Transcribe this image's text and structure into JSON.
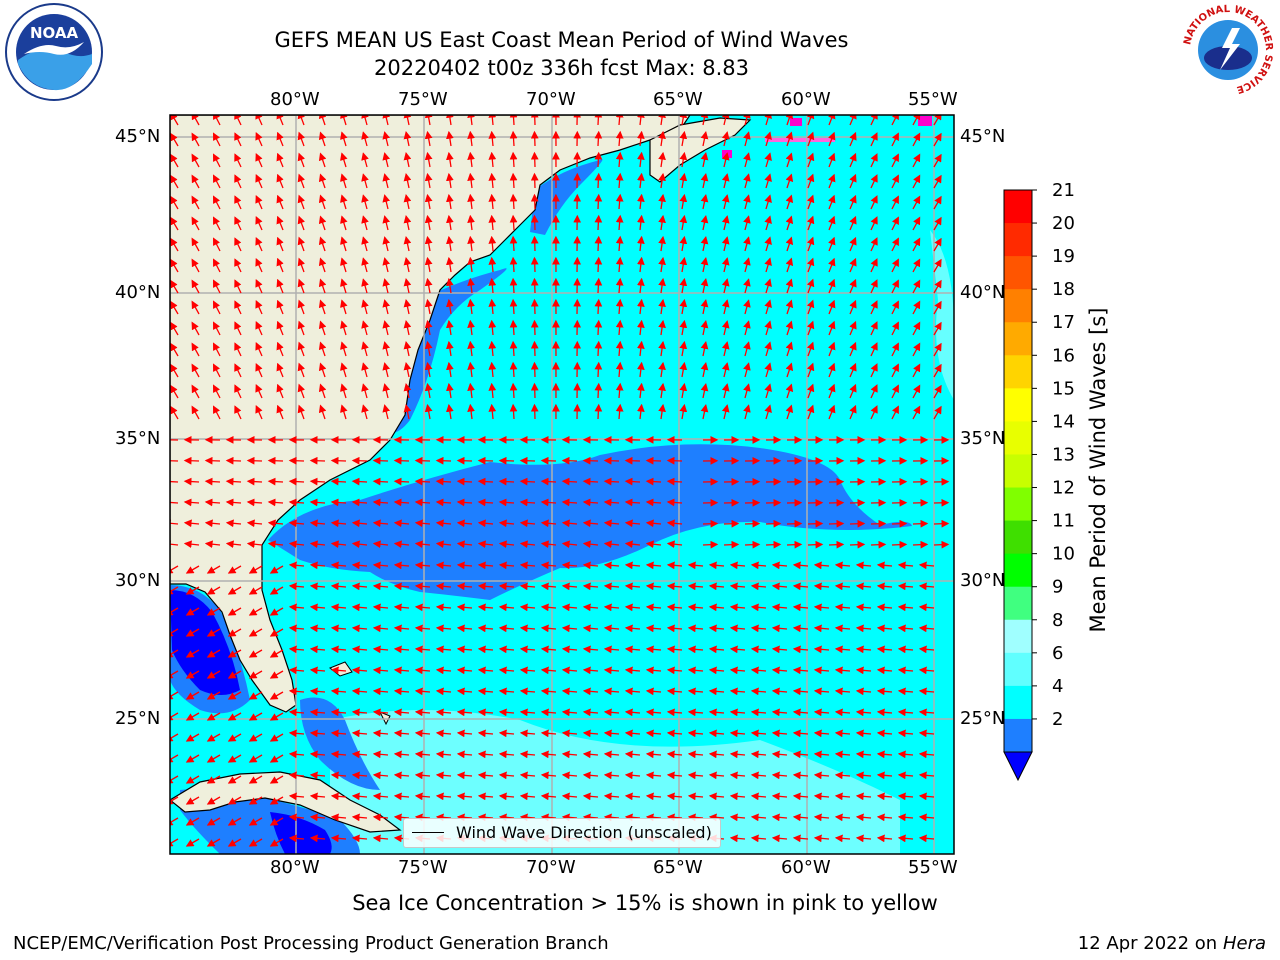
{
  "header": {
    "title_line1": "GEFS MEAN US East Coast Mean Period of Wind Waves",
    "title_line2": "20220402 t00z 336h fcst   Max: 8.83",
    "logo_left": {
      "name": "noaa-logo",
      "text": "NOAA"
    },
    "logo_right": {
      "name": "nws-logo",
      "ring_text": "NATIONAL WEATHER SERVICE"
    }
  },
  "map": {
    "lon_ticks_top": [
      "80°W",
      "75°W",
      "70°W",
      "65°W",
      "60°W",
      "55°W"
    ],
    "lon_ticks_bottom": [
      "80°W",
      "75°W",
      "70°W",
      "65°W",
      "60°W",
      "55°W"
    ],
    "lat_ticks_left": [
      "45°N",
      "40°N",
      "35°N",
      "30°N",
      "25°N"
    ],
    "lat_ticks_right": [
      "45°N",
      "40°N",
      "35°N",
      "30°N",
      "25°N"
    ],
    "legend_label": "Wind Wave Direction (unscaled)",
    "colors": {
      "land": "#efefdc",
      "ocean_4_6": "#00ffff",
      "band_2_4": "#1e7fff",
      "band_below_2": "#0000ff",
      "band_6_8": "#80ffff",
      "arrow": "#ff0000",
      "grid": "#b0b0b0",
      "ice": "#ff00cc"
    }
  },
  "colorbar": {
    "label": "Mean Period of Wind Waves [s]",
    "ticks": [
      "21",
      "20",
      "19",
      "18",
      "17",
      "16",
      "15",
      "14",
      "13",
      "12",
      "11",
      "10",
      "9",
      "8",
      "6",
      "4",
      "2"
    ],
    "colors": [
      "#ff0000",
      "#ff2a00",
      "#ff5500",
      "#ff8000",
      "#ffaa00",
      "#ffd400",
      "#ffff00",
      "#e8ff00",
      "#c8ff00",
      "#80ff00",
      "#3fdf00",
      "#00ff00",
      "#40ff80",
      "#a0ffff",
      "#60ffff",
      "#00ffff",
      "#1e7fff",
      "#0000ff"
    ]
  },
  "footer": {
    "ice_note": "Sea Ice Concentration > 15% is shown in pink to yellow",
    "credit": "NCEP/EMC/Verification Post Processing Product Generation Branch",
    "date": "12 Apr 2022 on",
    "machine": "Hera"
  }
}
